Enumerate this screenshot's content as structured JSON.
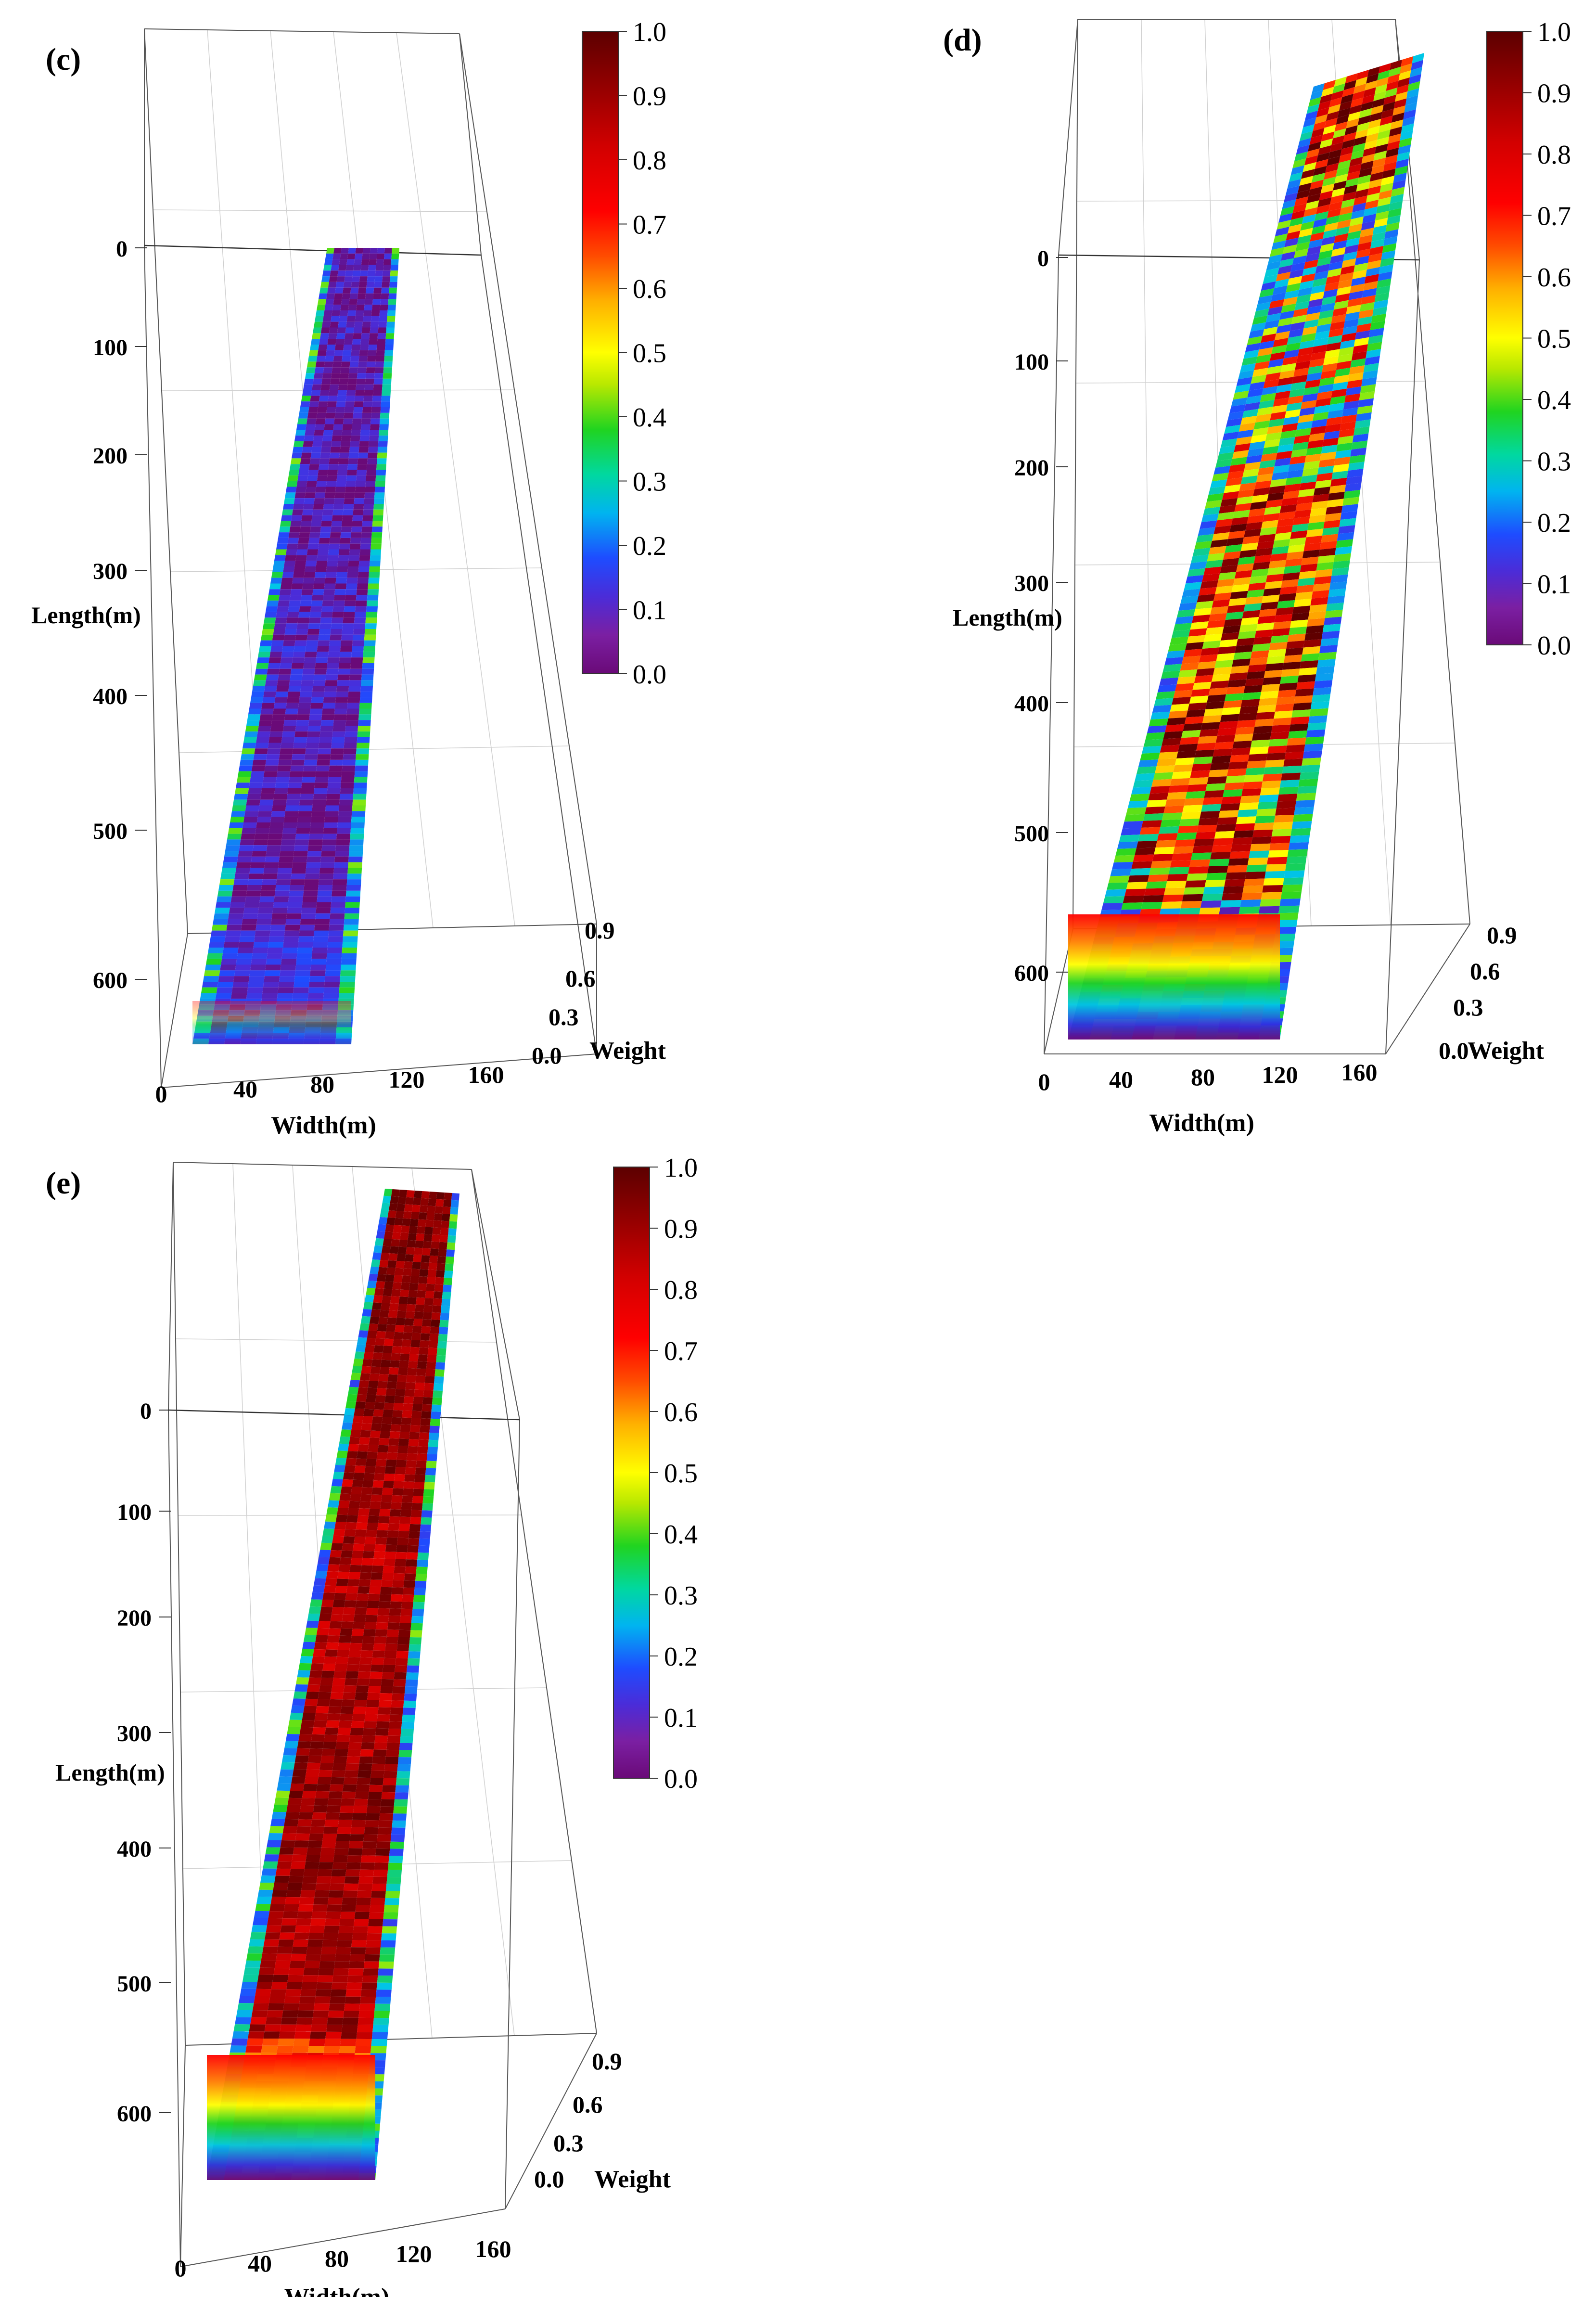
{
  "chart_data": [
    {
      "type": "surface",
      "panel_label": "(c)",
      "xlabel": "Width(m)",
      "ylabel": "Length(m)",
      "zlabel": "Weight",
      "x_ticks": [
        "0",
        "40",
        "80",
        "120",
        "160"
      ],
      "y_ticks": [
        "0",
        "100",
        "200",
        "300",
        "400",
        "500",
        "600"
      ],
      "z_ticks": [
        "0.0",
        "0.3",
        "0.6",
        "0.9"
      ],
      "xlim": [
        0,
        160
      ],
      "ylim": [
        0,
        650
      ],
      "zlim": [
        0,
        1
      ],
      "colorbar": {
        "min": 0.0,
        "max": 1.0,
        "ticks": [
          "1.0",
          "0.9",
          "0.8",
          "0.7",
          "0.6",
          "0.5",
          "0.4",
          "0.3",
          "0.2",
          "0.1",
          "0.0"
        ]
      },
      "surface_summary": {
        "typical_weight": 0.05,
        "edge_weight": 0.3,
        "length_rows": [
          0,
          100,
          200,
          300,
          400,
          500,
          600
        ],
        "row_mean_weight": [
          0.06,
          0.05,
          0.05,
          0.07,
          0.05,
          0.05,
          0.12
        ]
      }
    },
    {
      "type": "surface",
      "panel_label": "(d)",
      "xlabel": "Width(m)",
      "ylabel": "Length(m)",
      "zlabel": "Weight",
      "x_ticks": [
        "0",
        "40",
        "80",
        "120",
        "160"
      ],
      "y_ticks": [
        "0",
        "100",
        "200",
        "300",
        "400",
        "500",
        "600"
      ],
      "z_ticks": [
        "0.0",
        "0.3",
        "0.6",
        "0.9"
      ],
      "xlim": [
        0,
        160
      ],
      "ylim": [
        0,
        650
      ],
      "zlim": [
        0,
        1
      ],
      "colorbar": {
        "min": 0.0,
        "max": 1.0,
        "ticks": [
          "1.0",
          "0.9",
          "0.8",
          "0.7",
          "0.6",
          "0.5",
          "0.4",
          "0.3",
          "0.2",
          "0.1",
          "0.0"
        ]
      },
      "surface_summary": {
        "typical_weight": 0.65,
        "edge_weight": 0.3,
        "length_rows": [
          0,
          100,
          200,
          300,
          400,
          500,
          600
        ],
        "row_mean_weight": [
          0.75,
          0.45,
          0.5,
          0.7,
          0.75,
          0.65,
          0.4
        ]
      }
    },
    {
      "type": "surface",
      "panel_label": "(e)",
      "xlabel": "Width(m)",
      "ylabel": "Length(m)",
      "zlabel": "Weight",
      "x_ticks": [
        "0",
        "40",
        "80",
        "120",
        "160"
      ],
      "y_ticks": [
        "0",
        "100",
        "200",
        "300",
        "400",
        "500",
        "600"
      ],
      "z_ticks": [
        "0.0",
        "0.3",
        "0.6",
        "0.9"
      ],
      "xlim": [
        0,
        160
      ],
      "ylim": [
        0,
        650
      ],
      "zlim": [
        0,
        1
      ],
      "colorbar": {
        "min": 0.0,
        "max": 1.0,
        "ticks": [
          "1.0",
          "0.9",
          "0.8",
          "0.7",
          "0.6",
          "0.5",
          "0.4",
          "0.3",
          "0.2",
          "0.1",
          "0.0"
        ]
      },
      "surface_summary": {
        "typical_weight": 0.9,
        "edge_weight": 0.3,
        "length_rows": [
          0,
          100,
          200,
          300,
          400,
          500,
          600
        ],
        "row_mean_weight": [
          0.92,
          0.9,
          0.88,
          0.88,
          0.9,
          0.88,
          0.7
        ]
      }
    }
  ]
}
